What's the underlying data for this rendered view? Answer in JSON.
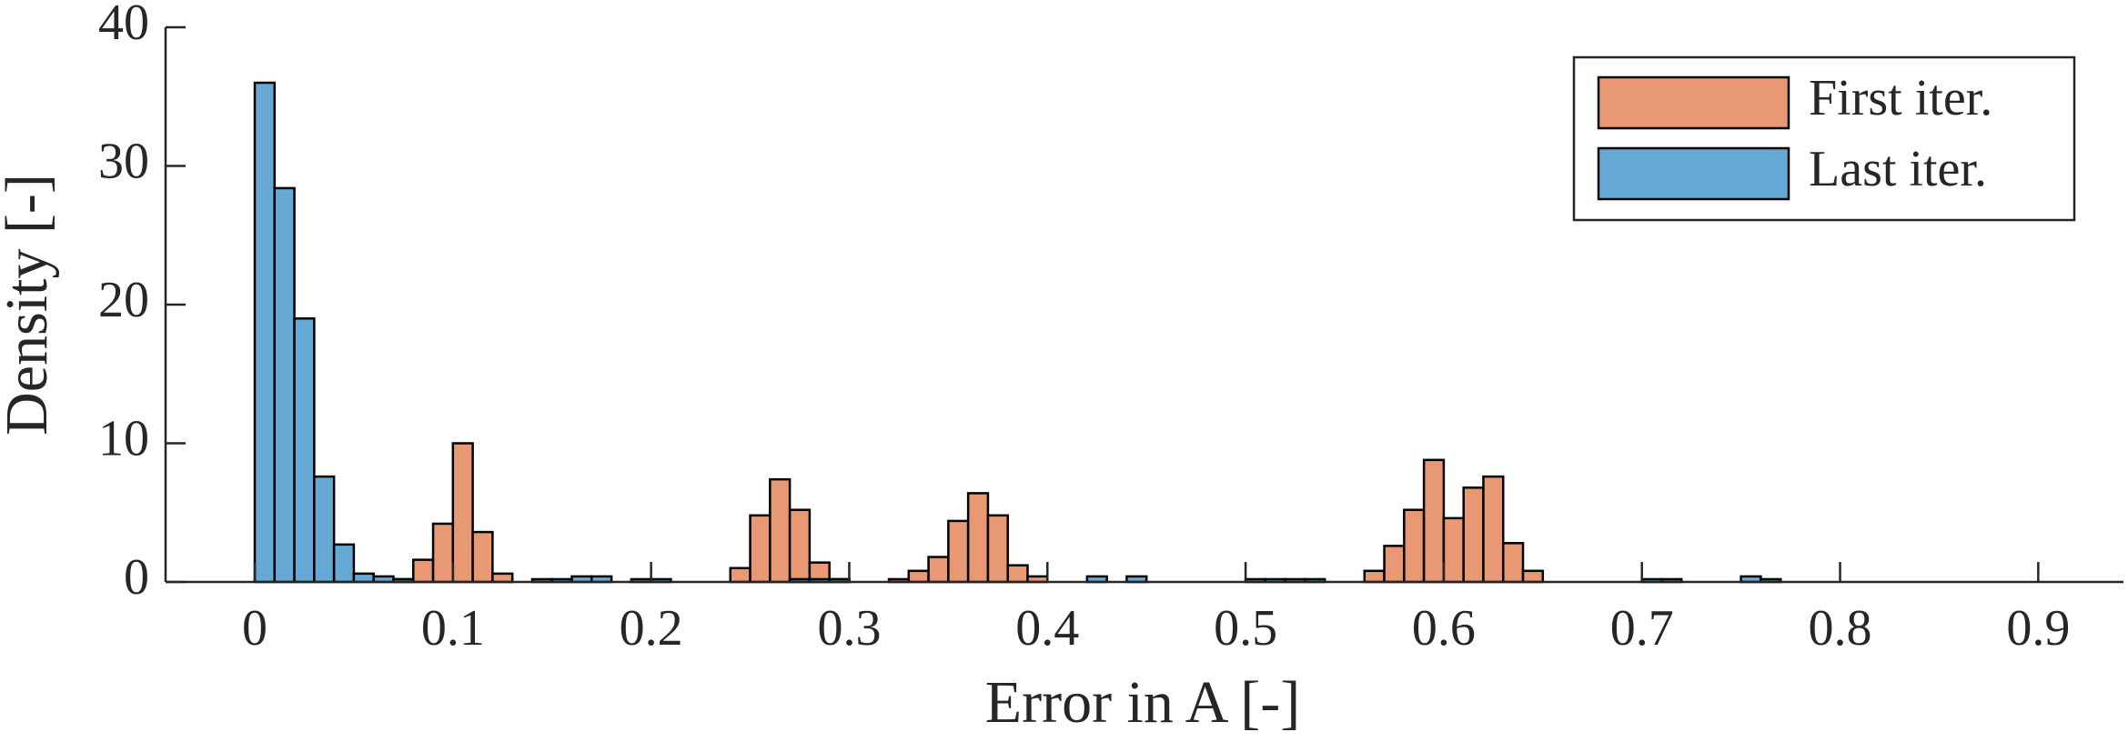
{
  "chart_data": {
    "type": "histogram",
    "x_label": "Error in A [-]",
    "y_label": "Density [-]",
    "bins": [
      0,
      0.01,
      0.02,
      0.03,
      0.04,
      0.05,
      0.06,
      0.07,
      0.08,
      0.09,
      0.1,
      0.11,
      0.12,
      0.13,
      0.14,
      0.15,
      0.16,
      0.17,
      0.18,
      0.19,
      0.2,
      0.21,
      0.22,
      0.23,
      0.24,
      0.25,
      0.26,
      0.27,
      0.28,
      0.29,
      0.3,
      0.31,
      0.32,
      0.33,
      0.34,
      0.35,
      0.36,
      0.37,
      0.38,
      0.39,
      0.4,
      0.41,
      0.42,
      0.43,
      0.44,
      0.45,
      0.46,
      0.47,
      0.48,
      0.49,
      0.5,
      0.51,
      0.52,
      0.53,
      0.54,
      0.55,
      0.56,
      0.57,
      0.58,
      0.59,
      0.6,
      0.61,
      0.62,
      0.63,
      0.64,
      0.65,
      0.66,
      0.67,
      0.68,
      0.69,
      0.7,
      0.71,
      0.72,
      0.73,
      0.74,
      0.75,
      0.76,
      0.77
    ],
    "series": [
      {
        "name": "First iter.",
        "color": "#e89873",
        "values": [
          0,
          0,
          0,
          0,
          0,
          0,
          0,
          0.2,
          1.6,
          4.2,
          10,
          3.6,
          0.6,
          0,
          0,
          0,
          0,
          0,
          0,
          0,
          0,
          0,
          0,
          0,
          1,
          4.8,
          7.4,
          5.2,
          1.4,
          0.2,
          0,
          0,
          0.2,
          0.8,
          1.8,
          4.4,
          6.4,
          4.8,
          1.2,
          0.4,
          0,
          0,
          0,
          0,
          0,
          0,
          0,
          0,
          0,
          0,
          0,
          0,
          0,
          0,
          0,
          0,
          0.8,
          2.6,
          5.2,
          8.8,
          4.6,
          6.8,
          7.6,
          2.8,
          0.8,
          0,
          0,
          0,
          0,
          0,
          0,
          0,
          0,
          0,
          0,
          0,
          0
        ]
      },
      {
        "name": "Last iter.",
        "color": "#66a9d5",
        "values": [
          36,
          28.4,
          19,
          7.6,
          2.7,
          0.6,
          0.4,
          0.2,
          0,
          0,
          0,
          0,
          0,
          0,
          0.2,
          0.2,
          0.4,
          0.4,
          0,
          0.2,
          0.2,
          0,
          0,
          0,
          0,
          0,
          0,
          0.2,
          0.2,
          0.2,
          0,
          0,
          0,
          0,
          0,
          0,
          0,
          0,
          0,
          0,
          0,
          0,
          0.4,
          0,
          0.4,
          0,
          0,
          0,
          0,
          0,
          0.2,
          0.2,
          0.2,
          0.2,
          0,
          0,
          0,
          0,
          0,
          0,
          0,
          0,
          0,
          0,
          0,
          0,
          0,
          0,
          0,
          0,
          0.2,
          0.2,
          0,
          0,
          0,
          0.4,
          0.2
        ]
      }
    ],
    "xlim": [
      -0.045,
      0.943
    ],
    "xticks": [
      0,
      0.1,
      0.2,
      0.3,
      0.4,
      0.5,
      0.6,
      0.7,
      0.8,
      0.9
    ],
    "ylim": [
      0,
      40
    ],
    "yticks": [
      0,
      10,
      20,
      30,
      40
    ],
    "legend": "northeast"
  }
}
